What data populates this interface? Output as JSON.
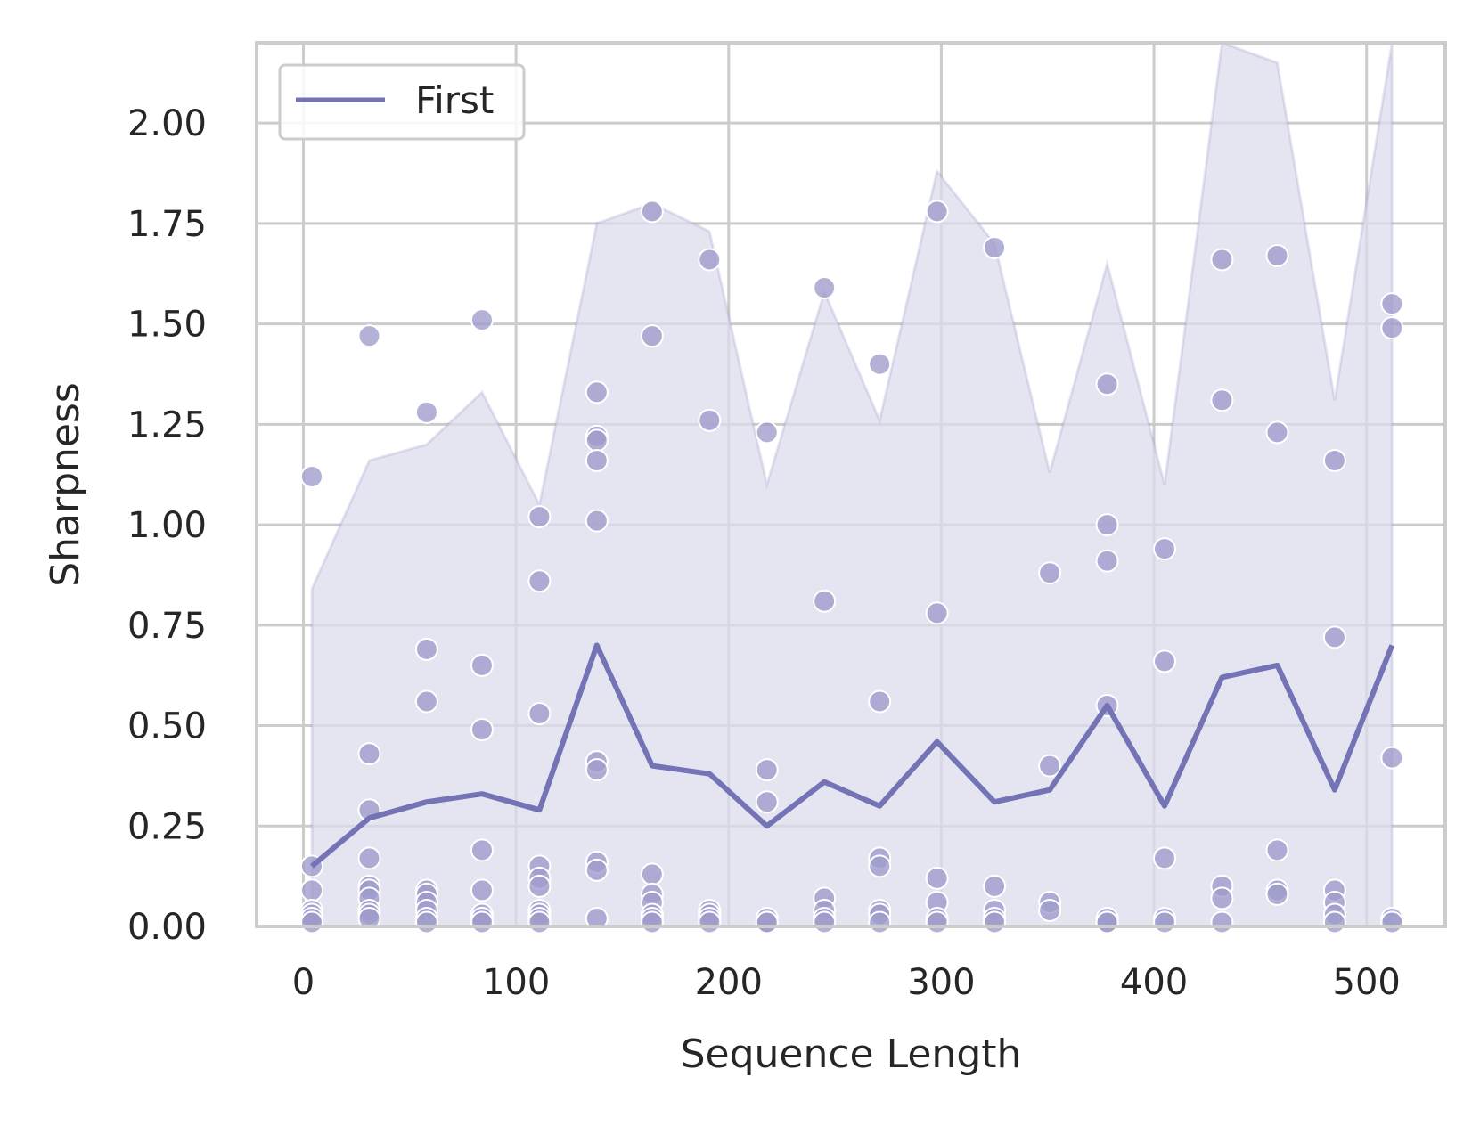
{
  "chart_data": {
    "type": "line",
    "xlabel": "Sequence Length",
    "ylabel": "Sharpness",
    "xlim": [
      -22,
      537
    ],
    "ylim": [
      0,
      2.2
    ],
    "xticks": [
      0,
      100,
      200,
      300,
      400,
      500
    ],
    "xtick_labels": [
      "0",
      "100",
      "200",
      "300",
      "400",
      "500"
    ],
    "yticks": [
      0,
      0.25,
      0.5,
      0.75,
      1.0,
      1.25,
      1.5,
      1.75,
      2.0
    ],
    "ytick_labels": [
      "0.00",
      "0.25",
      "0.50",
      "0.75",
      "1.00",
      "1.25",
      "1.50",
      "1.75",
      "2.00"
    ],
    "grid": true,
    "legend": {
      "position": "top-left",
      "entries": [
        "First"
      ]
    },
    "colors": {
      "line": "#7473b5",
      "band": "#dcdcec",
      "points": "#9e9bcb",
      "grid": "#cccccc"
    },
    "series": [
      {
        "name": "First",
        "x": [
          4,
          31,
          58,
          84,
          111,
          138,
          164,
          191,
          218,
          245,
          271,
          298,
          325,
          351,
          378,
          405,
          432,
          458,
          485,
          512
        ],
        "y": [
          0.15,
          0.27,
          0.31,
          0.33,
          0.29,
          0.7,
          0.4,
          0.38,
          0.25,
          0.36,
          0.3,
          0.46,
          0.31,
          0.34,
          0.55,
          0.3,
          0.62,
          0.65,
          0.34,
          0.7
        ],
        "band_upper": [
          0.84,
          1.16,
          1.2,
          1.33,
          1.05,
          1.75,
          1.8,
          1.73,
          1.1,
          1.58,
          1.26,
          1.88,
          1.7,
          1.13,
          1.65,
          1.1,
          2.22,
          2.15,
          1.31,
          2.2
        ],
        "band_lower": [
          0,
          0,
          0,
          0,
          0,
          0,
          0,
          0,
          0,
          0,
          0,
          0,
          0,
          0,
          0,
          0,
          0,
          0,
          0,
          0
        ]
      }
    ],
    "scatter": [
      {
        "x": 4,
        "y": [
          1.12,
          0.15,
          0.09,
          0.04,
          0.03,
          0.02,
          0.02,
          0.01
        ]
      },
      {
        "x": 31,
        "y": [
          1.47,
          0.43,
          0.29,
          0.17,
          0.1,
          0.09,
          0.07,
          0.04,
          0.03,
          0.02
        ]
      },
      {
        "x": 58,
        "y": [
          1.28,
          0.69,
          0.56,
          0.09,
          0.08,
          0.06,
          0.04,
          0.02,
          0.01
        ]
      },
      {
        "x": 84,
        "y": [
          1.51,
          0.65,
          0.49,
          0.19,
          0.09,
          0.03,
          0.02,
          0.02,
          0.01
        ]
      },
      {
        "x": 111,
        "y": [
          1.02,
          0.86,
          0.53,
          0.15,
          0.12,
          0.1,
          0.04,
          0.03,
          0.02,
          0.01
        ]
      },
      {
        "x": 138,
        "y": [
          1.33,
          1.22,
          1.21,
          1.16,
          1.01,
          0.41,
          0.39,
          0.16,
          0.14,
          0.02
        ]
      },
      {
        "x": 164,
        "y": [
          1.78,
          1.47,
          0.13,
          0.08,
          0.06,
          0.03,
          0.02,
          0.01
        ]
      },
      {
        "x": 191,
        "y": [
          1.66,
          1.26,
          0.04,
          0.03,
          0.02,
          0.01
        ]
      },
      {
        "x": 218,
        "y": [
          1.23,
          0.39,
          0.31,
          0.02,
          0.01,
          0.01
        ]
      },
      {
        "x": 245,
        "y": [
          1.59,
          0.81,
          0.07,
          0.04,
          0.02,
          0.01
        ]
      },
      {
        "x": 271,
        "y": [
          1.4,
          0.56,
          0.17,
          0.15,
          0.04,
          0.03,
          0.01
        ]
      },
      {
        "x": 298,
        "y": [
          1.78,
          0.78,
          0.12,
          0.06,
          0.02,
          0.01
        ]
      },
      {
        "x": 325,
        "y": [
          1.69,
          0.1,
          0.04,
          0.02,
          0.01
        ]
      },
      {
        "x": 351,
        "y": [
          0.88,
          0.4,
          0.06,
          0.04
        ]
      },
      {
        "x": 378,
        "y": [
          1.35,
          1.0,
          0.91,
          0.55,
          0.02,
          0.01,
          0.01
        ]
      },
      {
        "x": 405,
        "y": [
          0.94,
          0.66,
          0.17,
          0.02,
          0.01
        ]
      },
      {
        "x": 432,
        "y": [
          1.66,
          1.31,
          0.1,
          0.07,
          0.01
        ]
      },
      {
        "x": 458,
        "y": [
          1.67,
          1.23,
          0.19,
          0.09,
          0.08
        ]
      },
      {
        "x": 485,
        "y": [
          1.16,
          0.72,
          0.09,
          0.06,
          0.03,
          0.01
        ]
      },
      {
        "x": 512,
        "y": [
          1.55,
          1.49,
          0.42,
          0.02,
          0.01
        ]
      }
    ]
  }
}
